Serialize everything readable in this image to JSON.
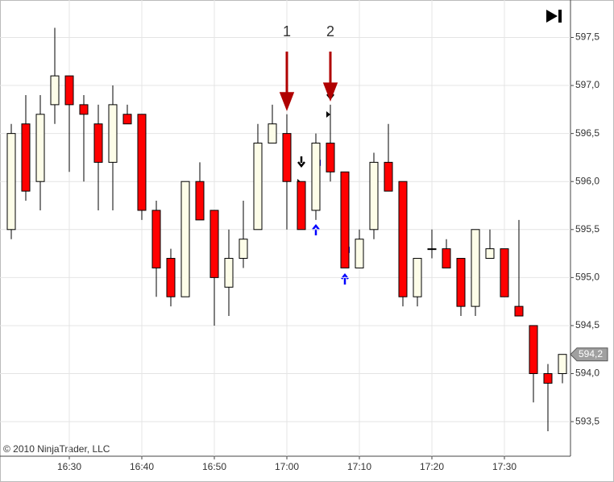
{
  "chart_data": {
    "type": "candlestick",
    "x": [
      "16:22",
      "16:24",
      "16:26",
      "16:28",
      "16:30",
      "16:32",
      "16:34",
      "16:36",
      "16:38",
      "16:40",
      "16:42",
      "16:44",
      "16:46",
      "16:48",
      "16:50",
      "16:52",
      "16:54",
      "16:56",
      "16:58",
      "17:00",
      "17:02",
      "17:04",
      "17:06",
      "17:08",
      "17:10",
      "17:12",
      "17:14",
      "17:16",
      "17:18",
      "17:20",
      "17:22",
      "17:24",
      "17:26",
      "17:28",
      "17:30",
      "17:32",
      "17:34",
      "17:36",
      "17:38"
    ],
    "open": [
      595.5,
      596.6,
      596.0,
      596.8,
      597.1,
      596.8,
      596.6,
      596.2,
      596.7,
      596.7,
      595.7,
      595.2,
      594.8,
      596.0,
      595.7,
      594.9,
      595.2,
      595.5,
      596.4,
      596.5,
      596.0,
      595.7,
      596.4,
      596.1,
      595.1,
      595.5,
      596.2,
      596.0,
      594.8,
      595.3,
      595.3,
      595.2,
      594.7,
      595.2,
      595.3,
      594.7,
      594.5,
      594.0,
      594.0
    ],
    "high": [
      596.6,
      596.9,
      596.9,
      597.6,
      597.1,
      596.9,
      596.8,
      597.0,
      596.8,
      596.7,
      595.8,
      595.3,
      596.0,
      596.2,
      595.7,
      595.5,
      595.8,
      596.6,
      596.8,
      596.7,
      596.0,
      596.5,
      596.8,
      596.1,
      595.5,
      596.3,
      596.6,
      596.0,
      595.2,
      595.5,
      595.4,
      595.2,
      595.5,
      595.5,
      595.3,
      595.6,
      594.5,
      594.1,
      594.2
    ],
    "low": [
      595.4,
      595.8,
      595.7,
      596.6,
      596.1,
      596.0,
      595.7,
      595.7,
      596.6,
      595.6,
      594.8,
      594.7,
      594.8,
      595.6,
      594.5,
      594.6,
      595.1,
      595.5,
      596.4,
      595.5,
      595.5,
      595.6,
      596.0,
      595.1,
      595.1,
      595.4,
      595.9,
      594.7,
      594.7,
      595.2,
      595.1,
      594.6,
      594.6,
      595.2,
      594.8,
      594.6,
      593.7,
      593.4,
      593.9
    ],
    "close": [
      596.5,
      595.9,
      596.7,
      597.1,
      596.8,
      596.7,
      596.2,
      596.8,
      596.6,
      595.7,
      595.1,
      594.8,
      596.0,
      595.6,
      595.0,
      595.2,
      595.4,
      596.4,
      596.6,
      596.0,
      595.5,
      596.4,
      596.1,
      595.1,
      595.4,
      596.2,
      595.9,
      594.8,
      595.2,
      595.3,
      595.1,
      594.7,
      595.5,
      595.3,
      594.8,
      594.6,
      594.0,
      593.9,
      594.2
    ],
    "up_color": "#fdfde8",
    "down_color": "#ff0000",
    "ylim": [
      593.14,
      597.89
    ],
    "yticks": [
      {
        "value": 593.5,
        "label": "593,5"
      },
      {
        "value": 594.0,
        "label": "594,0"
      },
      {
        "value": 594.5,
        "label": "594,5"
      },
      {
        "value": 595.0,
        "label": "595,0"
      },
      {
        "value": 595.5,
        "label": "595,5"
      },
      {
        "value": 596.0,
        "label": "596,0"
      },
      {
        "value": 596.5,
        "label": "596,5"
      },
      {
        "value": 597.0,
        "label": "597,0"
      },
      {
        "value": 597.5,
        "label": "597,5"
      }
    ],
    "xticks": [
      "16:30",
      "16:40",
      "16:50",
      "17:00",
      "17:10",
      "17:20",
      "17:30"
    ],
    "grid": true,
    "last_price": {
      "value": 594.2,
      "label": "594,2"
    },
    "annotations": [
      {
        "text": "1",
        "x": "17:00"
      },
      {
        "text": "2",
        "x": "17:06"
      }
    ],
    "copyright": "© 2010 NinjaTrader, LLC"
  }
}
